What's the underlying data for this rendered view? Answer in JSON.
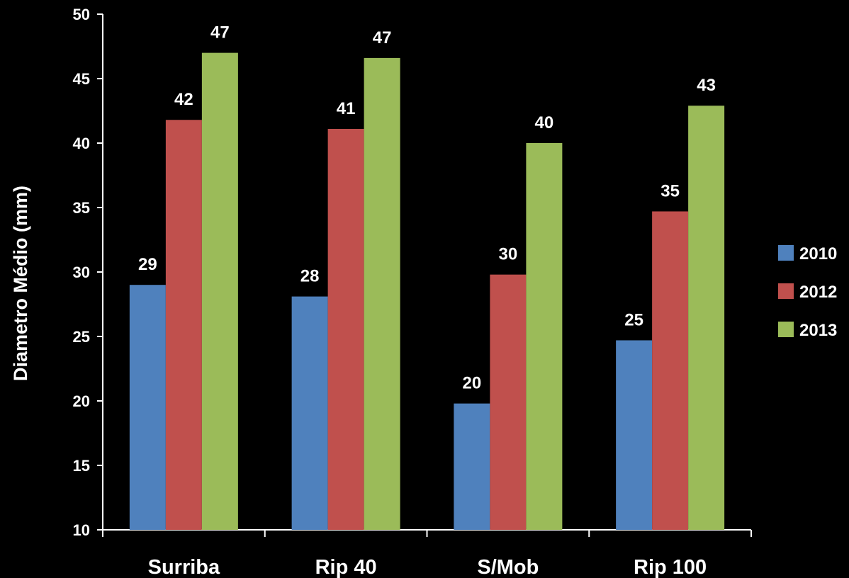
{
  "chart_data": {
    "type": "bar",
    "title": "",
    "xlabel": "",
    "ylabel": "Diametro Médio (mm)",
    "ylim": [
      10,
      50
    ],
    "yticks": [
      10,
      15,
      20,
      25,
      30,
      35,
      40,
      45,
      50
    ],
    "categories": [
      "Surriba",
      "Rip 40",
      "S/Mob",
      "Rip 100"
    ],
    "series": [
      {
        "name": "2010",
        "color": "#4F81BD",
        "values": [
          29,
          28.1,
          19.8,
          24.7
        ],
        "labels": [
          "29",
          "28",
          "20",
          "25"
        ]
      },
      {
        "name": "2012",
        "color": "#C0504D",
        "values": [
          41.8,
          41.1,
          29.8,
          34.7
        ],
        "labels": [
          "42",
          "41",
          "30",
          "35"
        ]
      },
      {
        "name": "2013",
        "color": "#9BBB59",
        "values": [
          47,
          46.6,
          40,
          42.9
        ],
        "labels": [
          "47",
          "47",
          "40",
          "43"
        ]
      }
    ],
    "grid": false,
    "legend": "right",
    "colors": {
      "background": "#000000",
      "axis": "#FFFFFF",
      "text": "#FFFFFF"
    }
  }
}
